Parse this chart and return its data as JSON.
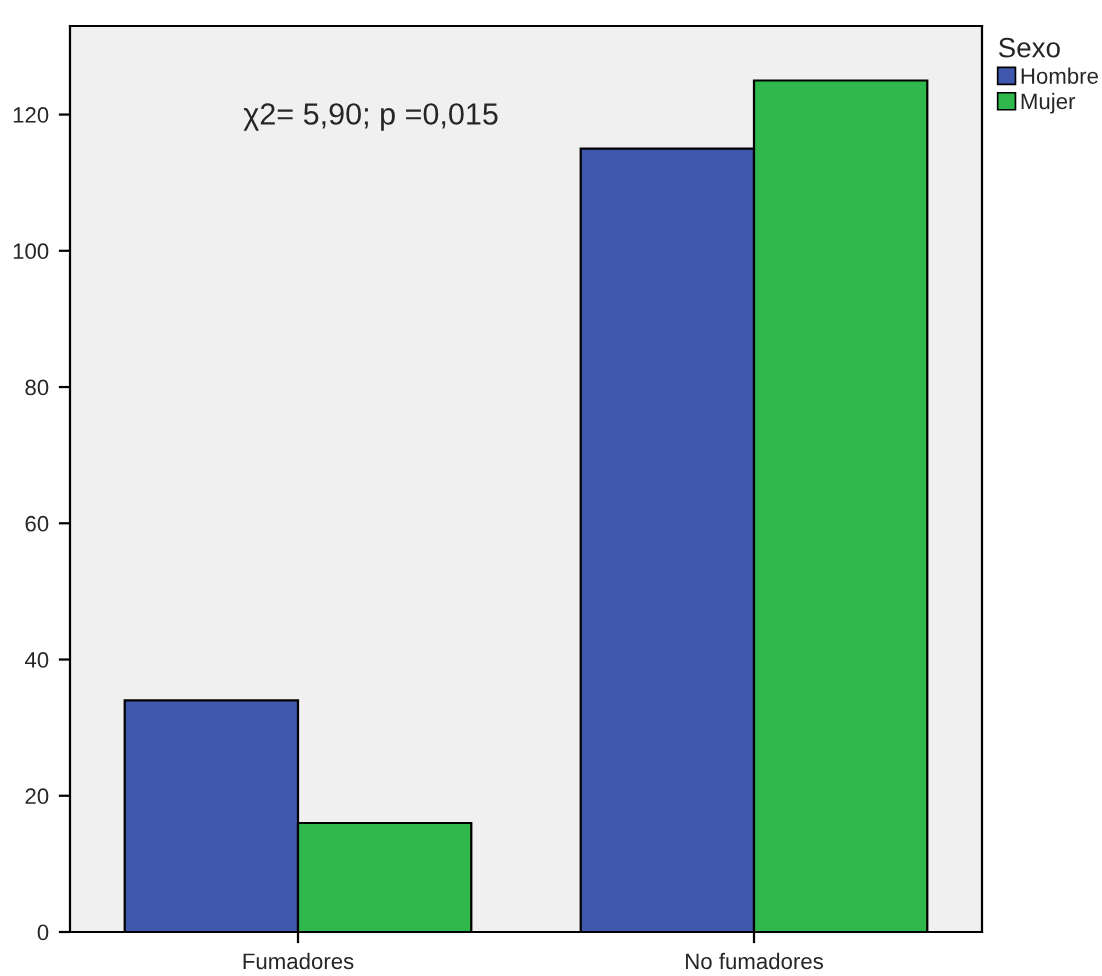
{
  "chart_data": {
    "type": "bar",
    "categories": [
      "Fumadores",
      "No fumadores"
    ],
    "series": [
      {
        "name": "Hombre",
        "color": "#3f58ad",
        "values": [
          34,
          115
        ]
      },
      {
        "name": "Mujer",
        "color": "#2fb84b",
        "values": [
          16,
          125
        ]
      }
    ],
    "ylim": [
      0,
      133
    ],
    "yticks": [
      0,
      20,
      40,
      60,
      80,
      100,
      120
    ],
    "legend_title": "Sexo",
    "legend": "right",
    "annotations": [
      "χ2= 5,90; p =0,015"
    ],
    "grid": false
  }
}
